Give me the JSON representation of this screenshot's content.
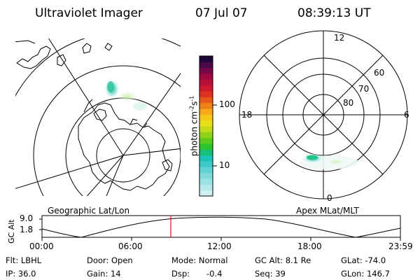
{
  "header": {
    "title": "Ultraviolet Imager",
    "date": "07 Jul 07",
    "time": "08:39:13 UT"
  },
  "colorbar": {
    "unit": "photon cm",
    "unit_exp": "-2",
    "unit_s": "s",
    "unit_s_exp": "-1",
    "ticks": [
      "100",
      "10"
    ],
    "colors": [
      "#cfeff0",
      "#b5e9ea",
      "#9be2e4",
      "#7fdadc",
      "#5fd2d3",
      "#3ec9c9",
      "#1ac4b6",
      "#15c07a",
      "#2bc42d",
      "#5acb18",
      "#8fd218",
      "#c5da18",
      "#e6e018",
      "#f5c818",
      "#f8a818",
      "#f08018",
      "#e85818",
      "#e03020",
      "#d01830",
      "#b81038",
      "#a00840",
      "#7a0848",
      "#4a0848",
      "#1e0838"
    ]
  },
  "left_plot": {
    "label": "Geographic Lat/Lon"
  },
  "right_plot": {
    "label": "Apex MLat/MLT",
    "mlt": {
      "top": "12",
      "left": "18",
      "right": "6",
      "bottom": "0"
    },
    "lat": [
      "60",
      "70",
      "80"
    ]
  },
  "timeline": {
    "ylabel": "GC Alt",
    "yticks": [
      "9.0",
      "1.8"
    ],
    "xticks": [
      "00:00",
      "06:00",
      "12:00",
      "18:00",
      "23:59"
    ]
  },
  "info": {
    "filter": "Flt: LBHL",
    "ip": "IP: 36.0",
    "door": "Door: Open",
    "gain": "Gain: 14",
    "mode": "Mode: Normal",
    "dsp": "Dsp:",
    "dsp_value": "-0.4",
    "gc_alt": "GC Alt: 8.1 Re",
    "seq": "Seq: 39",
    "glat": "GLat: -74.0",
    "glon": "GLon: 146.7"
  }
}
